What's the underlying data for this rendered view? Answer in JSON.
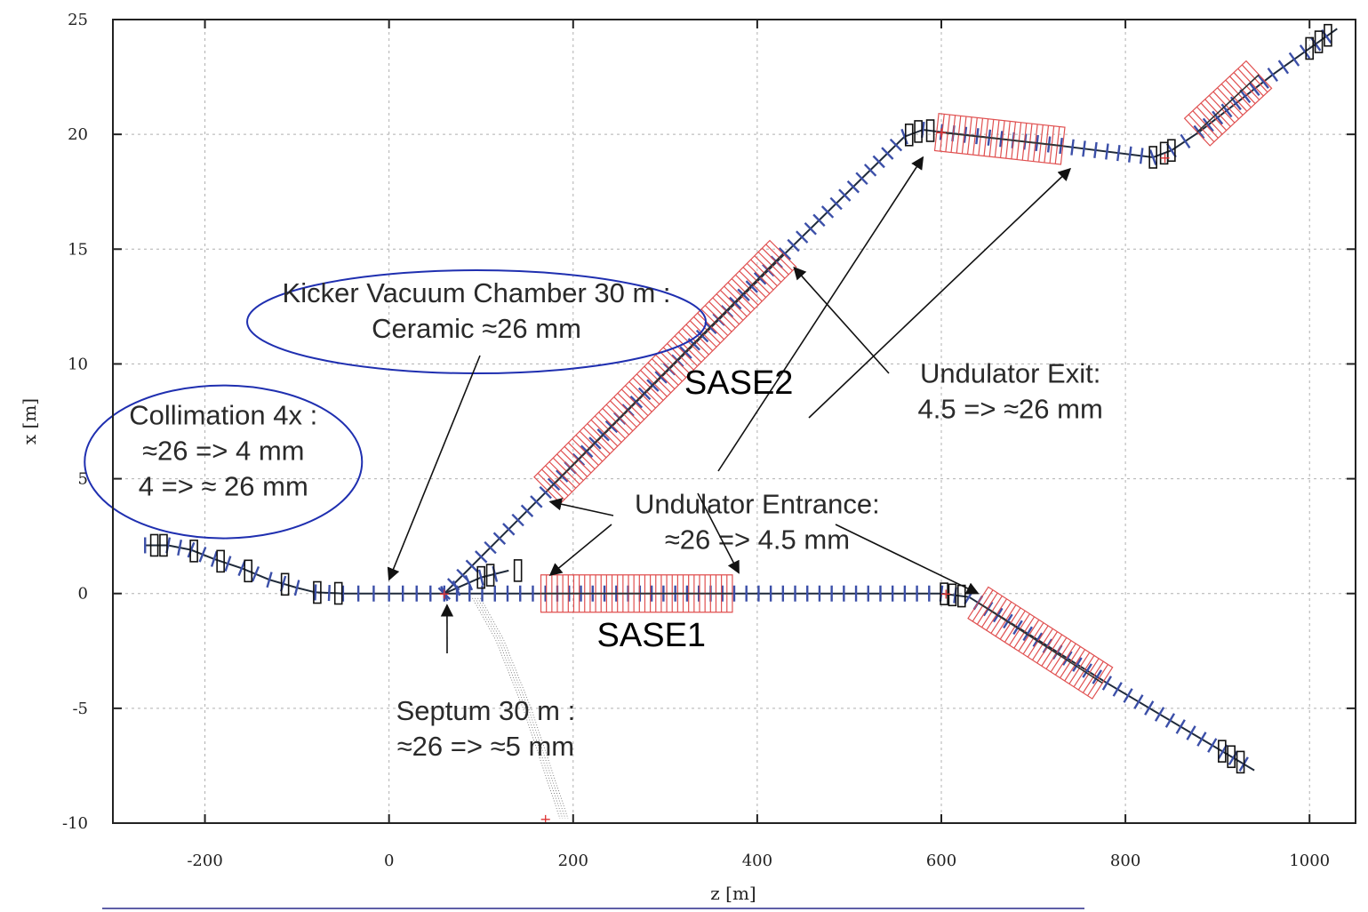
{
  "chart_data": {
    "type": "line",
    "title": "",
    "xlabel": "z [m]",
    "ylabel": "x [m]",
    "xlim": [
      -300,
      1050
    ],
    "ylim": [
      -10,
      25
    ],
    "x_ticks": [
      -200,
      0,
      200,
      400,
      600,
      800,
      1000
    ],
    "y_ticks": [
      25,
      20,
      15,
      10,
      5,
      0,
      -5,
      -10
    ],
    "grid": true,
    "colors": {
      "beamline": "#1f2a3a",
      "quadrupole": "#3b4fa8",
      "undulator": "#e05050",
      "dipole": "#111111",
      "ellipse": "#1f2fb0"
    },
    "series": [
      {
        "x": [
          -265,
          -240,
          -215,
          -190,
          -160,
          -130,
          -100,
          -80,
          -50,
          0,
          60,
          100,
          130
        ],
        "y": [
          2.1,
          2.1,
          1.9,
          1.5,
          1.1,
          0.6,
          0.25,
          0.05,
          0,
          0,
          0,
          0.7,
          1.0
        ]
      },
      {
        "x": [
          60,
          120,
          170,
          430,
          560,
          580,
          600,
          730,
          830,
          850,
          880,
          960,
          1030
        ],
        "y": [
          0,
          2.4,
          4.4,
          14.8,
          19.9,
          20.2,
          20.1,
          19.5,
          19.0,
          19.3,
          20.1,
          22.6,
          24.6
        ]
      },
      {
        "x": [
          60,
          170,
          375,
          600,
          630,
          640,
          780,
          940
        ],
        "y": [
          0,
          0,
          0,
          0,
          -0.15,
          -0.4,
          -3.9,
          -7.7
        ]
      },
      {
        "x": [
          95,
          120,
          150,
          175,
          190
        ],
        "y": [
          -0.2,
          -2,
          -5,
          -8,
          -9.8
        ]
      }
    ],
    "undulators": [
      {
        "name": "SASE1",
        "z_start": 165,
        "z_end": 373,
        "x": 0
      },
      {
        "name": "SASE2",
        "z_start": 172,
        "z_end": 428,
        "x_start": 4.5,
        "x_end": 14.8
      },
      {
        "z_start": 595,
        "z_end": 732,
        "x_start": 20.1,
        "x_end": 19.5
      },
      {
        "z_start": 640,
        "z_end": 775,
        "x_start": -0.4,
        "x_end": -3.9
      },
      {
        "z_start": 878,
        "z_end": 945,
        "x_start": 20.1,
        "x_end": 22.6
      }
    ],
    "dipole_groups": [
      {
        "z": [
          -255,
          -245,
          -212,
          -183,
          -153,
          -113,
          -78,
          -55
        ],
        "line": "left"
      },
      {
        "z": [
          100,
          110,
          140
        ],
        "line": "left-end"
      },
      {
        "z": [
          565,
          575,
          588
        ],
        "line": "upper"
      },
      {
        "z": [
          830,
          842,
          850
        ],
        "line": "upper2"
      },
      {
        "z": [
          1000,
          1010,
          1020
        ],
        "line": "upper3"
      },
      {
        "z": [
          603,
          612,
          622
        ],
        "line": "lower"
      },
      {
        "z": [
          905,
          915,
          925
        ],
        "line": "lower2"
      }
    ],
    "annotations": [
      {
        "id": "kicker",
        "lines": [
          "Kicker Vacuum Chamber 30 m :",
          "Ceramic ≈26 mm"
        ],
        "z": 95,
        "x": 12.3,
        "circled": true,
        "arrow_to": {
          "z": 0,
          "x": 0.6
        }
      },
      {
        "id": "collimation",
        "lines": [
          "Collimation  4x :",
          "≈26 => 4 mm",
          "4 => ≈ 26 mm"
        ],
        "z": -180,
        "x": 6.2,
        "circled": true
      },
      {
        "id": "undulator-exit",
        "lines": [
          "Undulator Exit:",
          "4.5  => ≈26 mm"
        ],
        "z": 675,
        "x": 8.8,
        "arrows_to": [
          {
            "z": 440,
            "x": 14.2
          },
          {
            "z": 740,
            "x": 18.5
          }
        ]
      },
      {
        "id": "undulator-entrance",
        "lines": [
          "Undulator Entrance:",
          "≈26 => 4.5 mm"
        ],
        "z": 400,
        "x": 3.1,
        "arrows_to": [
          {
            "z": 175,
            "x": 4.0
          },
          {
            "z": 175,
            "x": 0.8
          },
          {
            "z": 580,
            "x": 19.0
          },
          {
            "z": 640,
            "x": 0
          },
          {
            "z": 380,
            "x": 0.9
          }
        ]
      },
      {
        "id": "septum",
        "lines": [
          "Septum 30 m :",
          "≈26 => ≈5 mm"
        ],
        "z": 105,
        "x": -5.9,
        "arrow_to": {
          "z": 63,
          "x": -0.5
        }
      }
    ],
    "labels": [
      {
        "text": "SASE2",
        "z": 380,
        "x": 8.7
      },
      {
        "text": "SASE1",
        "z": 285,
        "x": -2.3
      }
    ],
    "markers": [
      {
        "z": 60,
        "x": 0,
        "symbol": "+",
        "color": "#d33"
      },
      {
        "z": 170,
        "x": -9.8,
        "symbol": "+",
        "color": "#d33"
      },
      {
        "z": 600,
        "x": 20.1,
        "symbol": "+",
        "color": "#d33"
      },
      {
        "z": 605,
        "x": 0,
        "symbol": "+",
        "color": "#d33"
      },
      {
        "z": 843,
        "x": 19.0,
        "symbol": "+",
        "color": "#d33"
      }
    ]
  }
}
